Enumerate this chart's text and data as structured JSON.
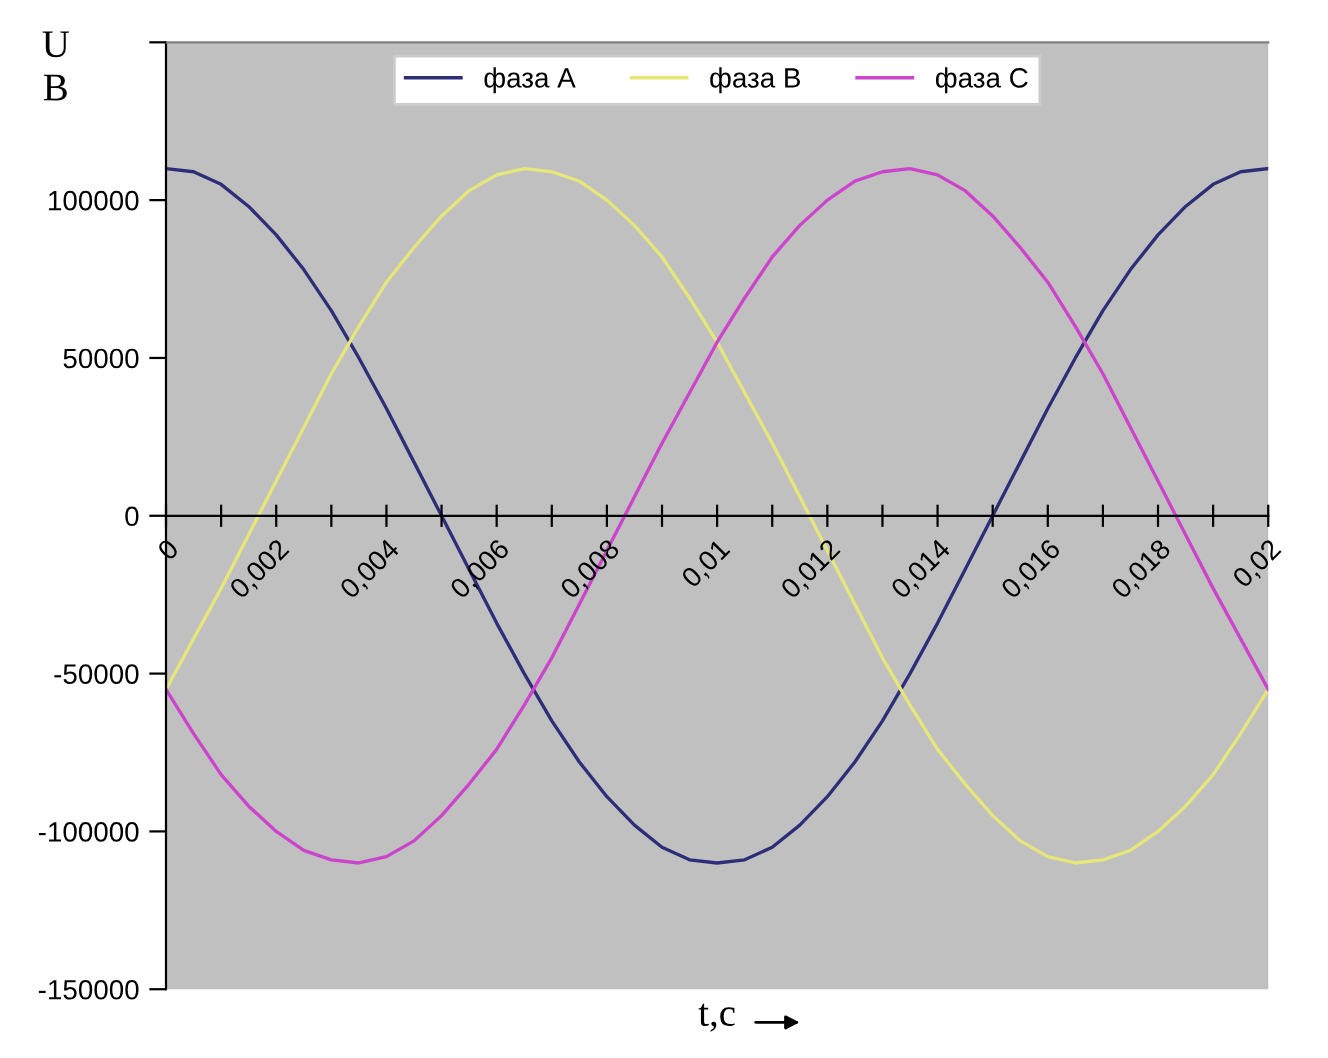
{
  "chart_data": {
    "type": "line",
    "ylabel": "U\nB",
    "xlabel": "t,c",
    "x": [
      0,
      0.0005,
      0.001,
      0.0015,
      0.002,
      0.0025,
      0.003,
      0.0035,
      0.004,
      0.0045,
      0.005,
      0.0055,
      0.006,
      0.0065,
      0.007,
      0.0075,
      0.008,
      0.0085,
      0.009,
      0.0095,
      0.01,
      0.0105,
      0.011,
      0.0115,
      0.012,
      0.0125,
      0.013,
      0.0135,
      0.014,
      0.0145,
      0.015,
      0.0155,
      0.016,
      0.0165,
      0.017,
      0.0175,
      0.018,
      0.0185,
      0.019,
      0.0195,
      0.02
    ],
    "series": [
      {
        "name": "фаза А",
        "color": "#2e2e78",
        "values": [
          110000,
          109000,
          105000,
          98000,
          89000,
          78000,
          65000,
          50000,
          34000,
          17000,
          0,
          -17000,
          -34000,
          -50000,
          -65000,
          -78000,
          -89000,
          -98000,
          -105000,
          -109000,
          -110000,
          -109000,
          -105000,
          -98000,
          -89000,
          -78000,
          -65000,
          -50000,
          -34000,
          -17000,
          0,
          17000,
          34000,
          50000,
          65000,
          78000,
          89000,
          98000,
          105000,
          109000,
          110000
        ]
      },
      {
        "name": "фаза В",
        "color": "#e6e67a",
        "values": [
          -55000,
          -39000,
          -23000,
          -6000,
          11000,
          28000,
          45000,
          60000,
          74000,
          85000,
          95000,
          103000,
          108000,
          110000,
          109000,
          106000,
          100000,
          92000,
          82000,
          69000,
          55000,
          39000,
          23000,
          6000,
          -11000,
          -28000,
          -45000,
          -60000,
          -74000,
          -85000,
          -95000,
          -103000,
          -108000,
          -110000,
          -109000,
          -106000,
          -100000,
          -92000,
          -82000,
          -69000,
          -55000
        ]
      },
      {
        "name": "фаза С",
        "color": "#cc44cc",
        "values": [
          -55000,
          -69000,
          -82000,
          -92000,
          -100000,
          -106000,
          -109000,
          -110000,
          -108000,
          -103000,
          -95000,
          -85000,
          -74000,
          -60000,
          -45000,
          -28000,
          -11000,
          6000,
          23000,
          39000,
          55000,
          69000,
          82000,
          92000,
          100000,
          106000,
          109000,
          110000,
          108000,
          103000,
          95000,
          85000,
          74000,
          60000,
          45000,
          28000,
          11000,
          -6000,
          -23000,
          -39000,
          -55000
        ]
      }
    ],
    "xlim": [
      0,
      0.02
    ],
    "xticks": [
      0,
      {
        "value": 0.001,
        "label": null
      },
      {
        "value": 0.002,
        "label": "0,002"
      },
      {
        "value": 0.003,
        "label": null
      },
      {
        "value": 0.004,
        "label": "0,004"
      },
      {
        "value": 0.005,
        "label": null
      },
      {
        "value": 0.006,
        "label": "0,006"
      },
      {
        "value": 0.007,
        "label": null
      },
      {
        "value": 0.008,
        "label": "0,008"
      },
      {
        "value": 0.009,
        "label": null
      },
      {
        "value": 0.01,
        "label": "0,01"
      },
      {
        "value": 0.011,
        "label": null
      },
      {
        "value": 0.012,
        "label": "0,012"
      },
      {
        "value": 0.013,
        "label": null
      },
      {
        "value": 0.014,
        "label": "0,014"
      },
      {
        "value": 0.015,
        "label": null
      },
      {
        "value": 0.016,
        "label": "0,016"
      },
      {
        "value": 0.017,
        "label": null
      },
      {
        "value": 0.018,
        "label": "0,018"
      },
      {
        "value": 0.019,
        "label": null
      },
      {
        "value": 0.02,
        "label": "0,02"
      }
    ],
    "ylim": [
      -150000,
      150000
    ],
    "yticks": [
      -150000,
      -100000,
      -50000,
      0,
      50000,
      100000,
      {
        "value": 150000,
        "label": null
      }
    ],
    "legend": "top",
    "grid": false,
    "marker": "none",
    "line_style": "solid"
  }
}
